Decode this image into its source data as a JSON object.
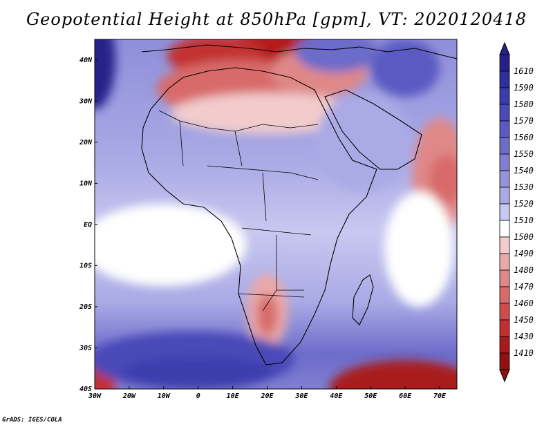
{
  "title": "Geopotential Height at 850hPa [gpm], VT: 2020120418",
  "credit": "GrADS: IGES/COLA",
  "lat_ticks": [
    "40N",
    "30N",
    "20N",
    "10N",
    "EQ",
    "10S",
    "20S",
    "30S",
    "40S"
  ],
  "lon_ticks": [
    "30W",
    "20W",
    "10W",
    "0",
    "10E",
    "20E",
    "30E",
    "40E",
    "50E",
    "60E",
    "70E"
  ],
  "colorbar": {
    "levels": [
      "1610",
      "1590",
      "1580",
      "1570",
      "1560",
      "1550",
      "1540",
      "1530",
      "1520",
      "1510",
      "1500",
      "1490",
      "1480",
      "1470",
      "1460",
      "1450",
      "1430",
      "1410"
    ],
    "colors": [
      "#26208a",
      "#2f2f9e",
      "#3c3cae",
      "#4a4ab8",
      "#5a5ac2",
      "#6c6cca",
      "#7f7fd3",
      "#9494dc",
      "#aaaae6",
      "#c8c8f0",
      "#ffffff",
      "#f2cccc",
      "#eaa8a8",
      "#e08888",
      "#d86a6a",
      "#cf4c4c",
      "#c23030",
      "#a91a1a",
      "#921010"
    ]
  },
  "map": {
    "lon_range": [
      -30,
      75
    ],
    "lat_range": [
      -40,
      45
    ],
    "blobs": [
      {
        "lon": 27,
        "lat": 41,
        "rx": 22,
        "ry": 7,
        "color": "#b41e1e"
      },
      {
        "lon": 5,
        "lat": 41,
        "rx": 14,
        "ry": 5,
        "color": "#c23030"
      },
      {
        "lon": 12,
        "lat": 33,
        "rx": 24,
        "ry": 7,
        "color": "#d86a6a"
      },
      {
        "lon": 35,
        "lat": 37,
        "rx": 14,
        "ry": 6,
        "color": "#e08888"
      },
      {
        "lon": 20,
        "lat": 27,
        "rx": 28,
        "ry": 5,
        "color": "#f2cccc"
      },
      {
        "lon": 70,
        "lat": 12,
        "rx": 8,
        "ry": 14,
        "color": "#e08888"
      },
      {
        "lon": 72,
        "lat": 11,
        "rx": 5,
        "ry": 6,
        "color": "#d86a6a"
      },
      {
        "lon": 64,
        "lat": -6,
        "rx": 10,
        "ry": 14,
        "color": "#ffffff"
      },
      {
        "lon": 20,
        "lat": -21,
        "rx": 6,
        "ry": 9,
        "color": "#eaa8a8"
      },
      {
        "lon": 20,
        "lat": -22,
        "rx": 3,
        "ry": 5,
        "color": "#d86a6a"
      },
      {
        "lon": 60,
        "lat": -40,
        "rx": 22,
        "ry": 7,
        "color": "#a91a1a"
      },
      {
        "lon": -30,
        "lat": -39,
        "rx": 6,
        "ry": 5,
        "color": "#c23030"
      },
      {
        "lon": -10,
        "lat": -5,
        "rx": 24,
        "ry": 10,
        "color": "#ffffff"
      },
      {
        "lon": -2,
        "lat": -33,
        "rx": 30,
        "ry": 7,
        "color": "#4a4ab8"
      },
      {
        "lon": 0,
        "lat": -36,
        "rx": 22,
        "ry": 4,
        "color": "#3c3cae"
      },
      {
        "lon": -30,
        "lat": 40,
        "rx": 6,
        "ry": 12,
        "color": "#26208a"
      },
      {
        "lon": 48,
        "lat": 20,
        "rx": 14,
        "ry": 12,
        "color": "#aaaae6"
      },
      {
        "lon": 40,
        "lat": 42,
        "rx": 12,
        "ry": 5,
        "color": "#6c6cca"
      },
      {
        "lon": 60,
        "lat": 38,
        "rx": 10,
        "ry": 7,
        "color": "#5a5ac2"
      }
    ]
  }
}
